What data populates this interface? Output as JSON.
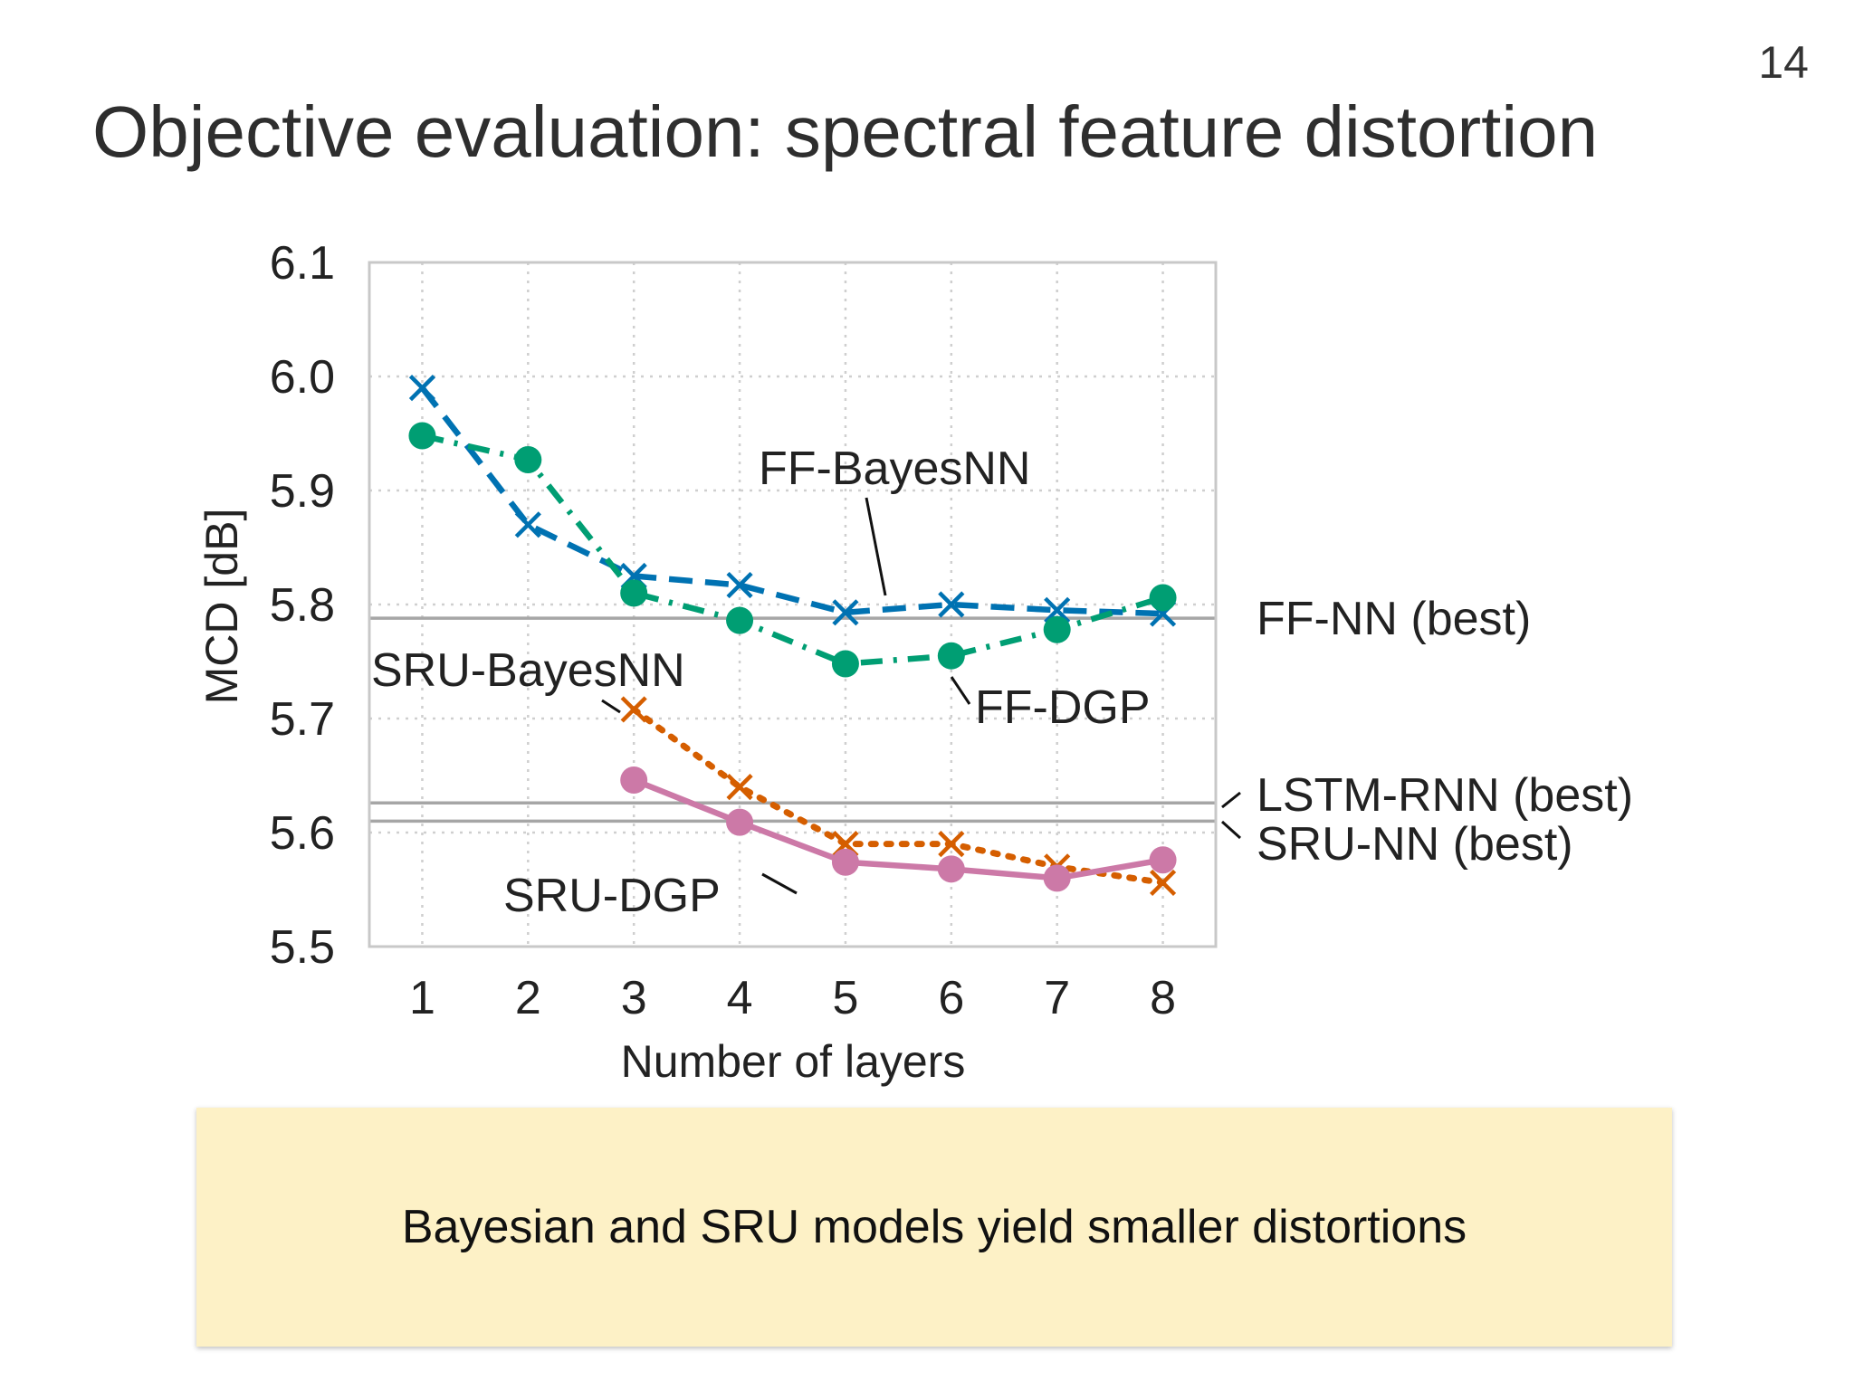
{
  "slide": {
    "title": "Objective evaluation: spectral feature distortion",
    "page_number": "14",
    "callout": "Bayesian and SRU models yield smaller distortions"
  },
  "chart_data": {
    "type": "line",
    "title": "",
    "xlabel": "Number of layers",
    "ylabel": "MCD [dB]",
    "x": [
      1,
      2,
      3,
      4,
      5,
      6,
      7,
      8
    ],
    "xlim": [
      0.5,
      8.5
    ],
    "ylim": [
      5.5,
      6.1
    ],
    "yticks": [
      5.5,
      5.6,
      5.7,
      5.8,
      5.9,
      6.0,
      6.1
    ],
    "ytick_labels": [
      "5.5",
      "5.6",
      "5.7",
      "5.8",
      "5.9",
      "6.0",
      "6.1"
    ],
    "xtick_labels": [
      "1",
      "2",
      "3",
      "4",
      "5",
      "6",
      "7",
      "8"
    ],
    "grid": true,
    "legend": "inline labels",
    "series": [
      {
        "name": "FF-BayesNN",
        "color": "#0072b2",
        "marker": "x",
        "linestyle": "dashed",
        "x": [
          1,
          2,
          3,
          4,
          5,
          6,
          7,
          8
        ],
        "values": [
          5.99,
          5.87,
          5.825,
          5.817,
          5.793,
          5.8,
          5.795,
          5.792
        ]
      },
      {
        "name": "FF-DGP",
        "color": "#009e73",
        "marker": "circle",
        "linestyle": "dashdot",
        "x": [
          1,
          2,
          3,
          4,
          5,
          6,
          7,
          8
        ],
        "values": [
          5.948,
          5.927,
          5.81,
          5.786,
          5.748,
          5.755,
          5.778,
          5.806
        ]
      },
      {
        "name": "SRU-BayesNN",
        "color": "#d55e00",
        "marker": "x",
        "linestyle": "dotted",
        "x": [
          3,
          4,
          5,
          6,
          7,
          8
        ],
        "values": [
          5.708,
          5.64,
          5.59,
          5.59,
          5.57,
          5.556
        ]
      },
      {
        "name": "SRU-DGP",
        "color": "#cc79a7",
        "marker": "circle",
        "linestyle": "solid",
        "x": [
          3,
          4,
          5,
          6,
          7,
          8
        ],
        "values": [
          5.646,
          5.609,
          5.574,
          5.568,
          5.56,
          5.576
        ]
      }
    ],
    "reference_lines": [
      {
        "name": "FF-NN (best)",
        "value": 5.788
      },
      {
        "name": "LSTM-RNN (best)",
        "value": 5.626
      },
      {
        "name": "SRU-NN (best)",
        "value": 5.61
      }
    ],
    "colors": {
      "reference": "#a6a6a6",
      "grid": "#cfcfcf",
      "frame": "#c8c8c8"
    }
  }
}
